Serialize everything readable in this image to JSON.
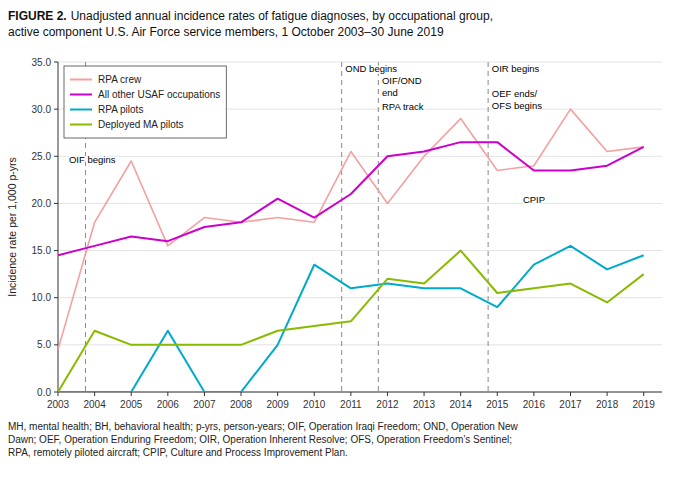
{
  "chart_data": {
    "type": "line",
    "title": "FIGURE 2.",
    "subtitle": "Unadjusted annual incidence rates of fatigue diagnoses, by occupational group,\nactive component U.S. Air Force service members, 1 October 2003–30 June 2019",
    "y_label": "Incidence rate per 1,000 p-yrs",
    "footnote": "MH, mental health; BH, behavioral health; p-yrs, person-years; OIF, Operation Iraqi Freedom; OND, Operation New\nDawn; OEF, Operation Enduring Freedom; OIR, Operation Inherent Resolve; OFS, Operation Freedom’s Sentinel;\nRPA, remotely piloted aircraft; CPIP, Culture and Process Improvement Plan.",
    "x": [
      2003,
      2004,
      2005,
      2006,
      2007,
      2008,
      2009,
      2010,
      2011,
      2012,
      2013,
      2014,
      2015,
      2016,
      2017,
      2018,
      2019
    ],
    "xlim": [
      2003,
      2019.5
    ],
    "xticks": [
      2003,
      2004,
      2005,
      2006,
      2007,
      2008,
      2009,
      2010,
      2011,
      2012,
      2013,
      2014,
      2015,
      2016,
      2017,
      2018,
      2019
    ],
    "ylim": [
      0,
      35
    ],
    "yticks": [
      {
        "value": 0,
        "label": "0.0"
      },
      {
        "value": 5,
        "label": "5.0"
      },
      {
        "value": 10,
        "label": "10.0"
      },
      {
        "value": 15,
        "label": "15.0"
      },
      {
        "value": 20,
        "label": "20.0"
      },
      {
        "value": 25,
        "label": "25.0"
      },
      {
        "value": 30,
        "label": "30.0"
      },
      {
        "value": 35,
        "label": "35.0"
      }
    ],
    "grid": true,
    "legend": "upper left",
    "vlines": [
      2003.75,
      2010.75,
      2011.75,
      2014.75
    ],
    "annotations": [
      {
        "text": "OIF begins",
        "x": 2003.3,
        "y": 25.2
      },
      {
        "text": "OND begins",
        "x": 2010.85,
        "y": 34.8
      },
      {
        "text": "OIF/OND\nend",
        "x": 2011.85,
        "y": 34.8
      },
      {
        "text": "RPA track",
        "x": 2011.85,
        "y": 30.8
      },
      {
        "text": "OIR begins",
        "x": 2014.85,
        "y": 34.8
      },
      {
        "text": "OEF ends/\nOFS begins",
        "x": 2014.85,
        "y": 32.2
      },
      {
        "text": "CPIP",
        "x": 2015.7,
        "y": 21.0
      }
    ],
    "series": [
      {
        "name": "RPA crew",
        "color": "#F4A0A0",
        "values": [
          4.5,
          18.0,
          24.5,
          15.5,
          18.5,
          18.0,
          18.5,
          18.0,
          25.5,
          20.0,
          25.0,
          29.0,
          23.5,
          24.0,
          30.0,
          25.5,
          26.0
        ]
      },
      {
        "name": "All other USAF occupations",
        "color": "#CC00CC",
        "values": [
          14.5,
          15.5,
          16.5,
          16.0,
          17.5,
          18.0,
          20.5,
          18.5,
          21.0,
          25.0,
          25.5,
          26.5,
          26.5,
          23.5,
          23.5,
          24.0,
          26.0
        ]
      },
      {
        "name": "RPA pilots",
        "color": "#00AACC",
        "values": [
          0.0,
          0.0,
          0.0,
          6.5,
          0.0,
          0.0,
          5.0,
          13.5,
          11.0,
          11.5,
          11.0,
          11.0,
          9.0,
          13.5,
          15.5,
          13.0,
          14.5
        ]
      },
      {
        "name": "Deployed MA pilots",
        "color": "#88BB00",
        "values": [
          0.0,
          6.5,
          5.0,
          5.0,
          5.0,
          5.0,
          6.5,
          7.0,
          7.5,
          12.0,
          11.5,
          15.0,
          10.5,
          11.0,
          11.5,
          9.5,
          12.5
        ]
      }
    ]
  }
}
